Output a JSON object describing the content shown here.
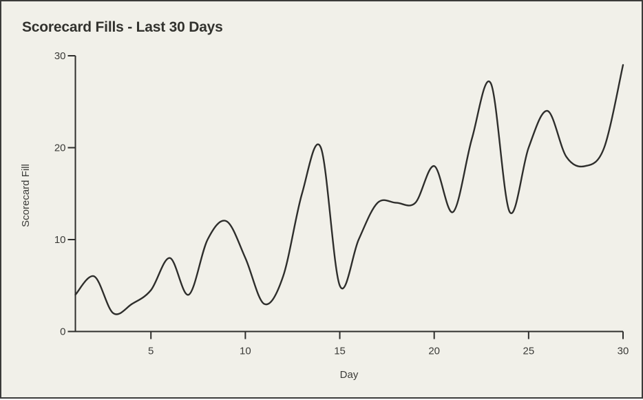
{
  "window": {
    "background_color": "#f1f0e9",
    "border_color": "#3b3b3a"
  },
  "chart_data": {
    "type": "line",
    "title": "Scorecard Fills - Last 30 Days",
    "xlabel": "Day",
    "ylabel": "Scorecard Fill",
    "x": [
      1,
      2,
      3,
      4,
      5,
      6,
      7,
      8,
      9,
      10,
      11,
      12,
      13,
      14,
      15,
      16,
      17,
      18,
      19,
      20,
      21,
      22,
      23,
      24,
      25,
      26,
      27,
      28,
      29,
      30
    ],
    "values": [
      4,
      6,
      2,
      3,
      4.5,
      8,
      4,
      10,
      12,
      8,
      3,
      6,
      15,
      20,
      5,
      10,
      14,
      14,
      14,
      18,
      13,
      21,
      27,
      13,
      20,
      24,
      19,
      18,
      20,
      29
    ],
    "xlim": [
      1,
      30
    ],
    "ylim": [
      0,
      30
    ],
    "xticks": [
      5,
      10,
      15,
      20,
      25,
      30
    ],
    "yticks": [
      0,
      10,
      20,
      30
    ],
    "xtick_labels": [
      "5",
      "10",
      "15",
      "20",
      "25",
      "30"
    ],
    "ytick_labels": [
      "0",
      "10",
      "20",
      "30"
    ],
    "grid": false,
    "legend": false,
    "interpolation": "smooth",
    "line_color": "#2e2e2c",
    "axis_color": "#2e2e2c",
    "text_color": "#3b3b38"
  }
}
